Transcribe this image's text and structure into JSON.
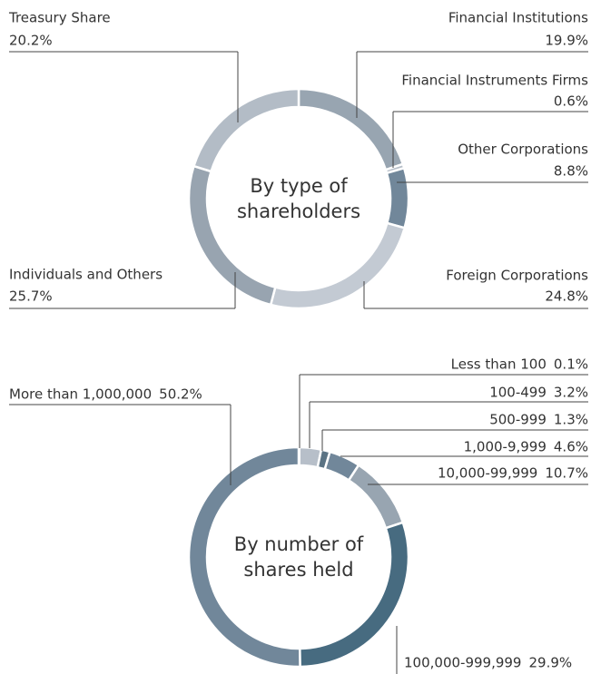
{
  "chart_data": [
    {
      "type": "pie",
      "center_label": [
        "By type of",
        "shareholders"
      ],
      "categories": [
        "Financial Institutions",
        "Financial Instruments Firms",
        "Other Corporations",
        "Foreign Corporations",
        "Individuals and Others",
        "Treasury Share"
      ],
      "values": [
        19.9,
        0.6,
        8.8,
        24.8,
        25.7,
        20.2
      ],
      "value_labels": [
        "19.9%",
        "0.6%",
        "8.8%",
        "24.8%",
        "25.7%",
        "20.2%"
      ],
      "colors": [
        "#98a5b1",
        "#b6bec8",
        "#71879a",
        "#c3cad3",
        "#98a4b0",
        "#b3bcc6"
      ]
    },
    {
      "type": "pie",
      "center_label": [
        "By number of",
        "shares held"
      ],
      "categories": [
        "Less than 100",
        "100-499",
        "500-999",
        "1,000-9,999",
        "10,000-99,999",
        "100,000-999,999",
        "More than 1,000,000"
      ],
      "values": [
        0.1,
        3.2,
        1.3,
        4.6,
        10.7,
        29.9,
        50.2
      ],
      "value_labels": [
        "0.1%",
        "3.2%",
        "1.3%",
        "4.6%",
        "10.7%",
        "29.9%",
        "50.2%"
      ],
      "colors": [
        "#b7bfc9",
        "#b7bfc9",
        "#5b7384",
        "#71879a",
        "#98a5b1",
        "#476b80",
        "#71879a"
      ]
    }
  ]
}
